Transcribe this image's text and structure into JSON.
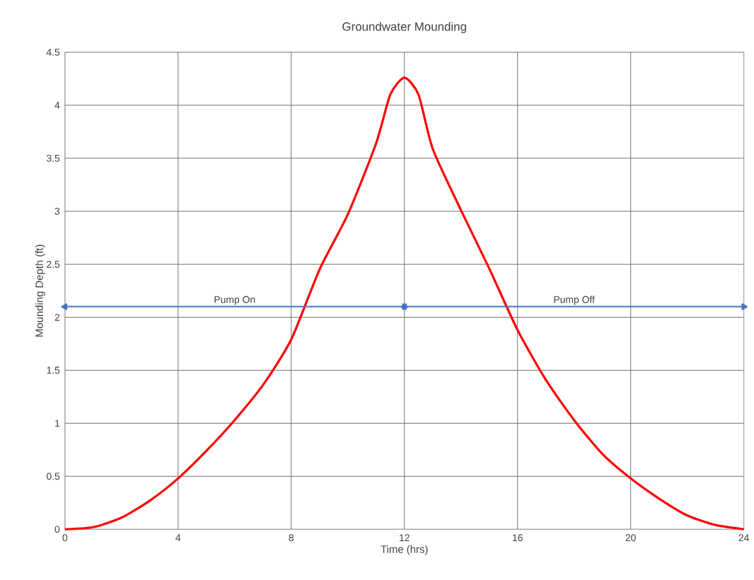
{
  "chart_data": {
    "type": "line",
    "title": "Groundwater Mounding",
    "xlabel": "Time (hrs)",
    "ylabel": "Mounding Depth (ft)",
    "x": [
      0,
      1,
      2,
      3,
      4,
      5,
      6,
      7,
      8,
      9,
      10,
      11,
      11.5,
      12,
      12.5,
      13,
      14,
      15,
      16,
      17,
      18,
      19,
      20,
      21,
      22,
      23,
      24
    ],
    "series": [
      {
        "color": "#ff0000",
        "values": [
          0,
          0.02,
          0.11,
          0.27,
          0.48,
          0.74,
          1.03,
          1.36,
          1.79,
          2.45,
          2.97,
          3.64,
          4.1,
          4.26,
          4.1,
          3.59,
          3.01,
          2.46,
          1.88,
          1.41,
          1.03,
          0.71,
          0.48,
          0.29,
          0.13,
          0.04,
          0
        ]
      },
      {
        "color": "#4472c4",
        "x": [
          0,
          12
        ],
        "values": [
          2.1,
          2.1
        ],
        "marker": "triangle"
      },
      {
        "color": "#4472c4",
        "x": [
          12,
          24
        ],
        "values": [
          2.1,
          2.1
        ],
        "marker": "triangle"
      }
    ],
    "xlim": [
      0,
      24
    ],
    "xticks": [
      0,
      4,
      8,
      12,
      16,
      20,
      24
    ],
    "ylim": [
      0,
      4.5
    ],
    "yticks": [
      0,
      0.5,
      1,
      1.5,
      2,
      2.5,
      3,
      3.5,
      4,
      4.5
    ],
    "grid": true,
    "marker": "none",
    "line_style": "solid",
    "annotations": [
      {
        "text": "Pump On",
        "x": 6,
        "y": 2.1
      },
      {
        "text": "Pump Off",
        "x": 18,
        "y": 2.1
      }
    ]
  }
}
